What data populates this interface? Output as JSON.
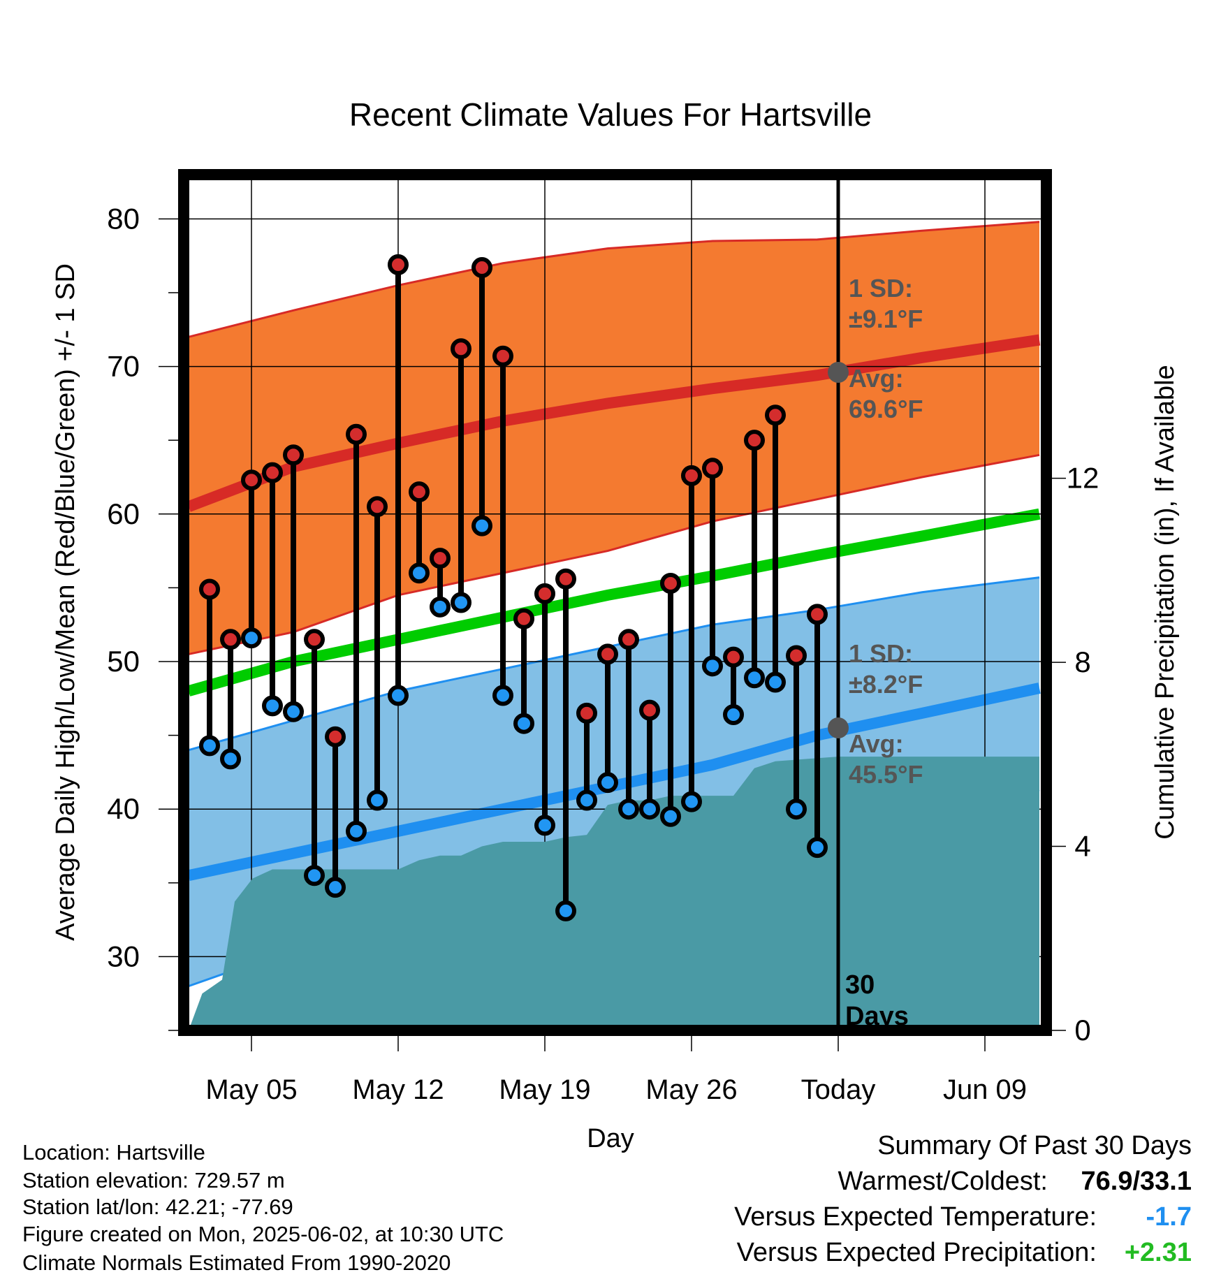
{
  "chart_data": {
    "type": "line",
    "title": "Recent Climate Values For Hartsville",
    "xlabel": "Day",
    "ylabel_left": "Average Daily High/Low/Mean (Red/Blue/Green) +/- 1 SD",
    "ylabel_right": "Cumulative Precipitation (in), If Available",
    "ylim_left": [
      25,
      83
    ],
    "ylim_right": [
      0,
      18.6
    ],
    "xlim_days": [
      0,
      43
    ],
    "x_tick_labels": [
      "May 05",
      "May 12",
      "May 19",
      "May 26",
      "Today",
      "Jun 09"
    ],
    "x_tick_days": [
      3,
      10,
      17,
      24,
      31,
      38
    ],
    "y_ticks_left": [
      30,
      40,
      50,
      60,
      70,
      80
    ],
    "y_ticks_right": [
      0,
      4,
      8,
      12
    ],
    "grid": true,
    "today_day": 31,
    "today_label": "30 Days",
    "normals": {
      "days": [
        0,
        5,
        10,
        15,
        20,
        25,
        30,
        35,
        40.6
      ],
      "high_avg": [
        60.5,
        63.2,
        64.8,
        66.3,
        67.5,
        68.5,
        69.4,
        70.6,
        71.8
      ],
      "high_upper": [
        72.0,
        73.8,
        75.5,
        77.0,
        78.0,
        78.5,
        78.6,
        79.2,
        79.8
      ],
      "high_lower": [
        50.5,
        52.0,
        54.5,
        56.0,
        57.5,
        59.5,
        61.0,
        62.5,
        64.0
      ],
      "mean": [
        48.0,
        50.0,
        51.5,
        53.0,
        54.5,
        55.8,
        57.2,
        58.5,
        60.0
      ],
      "low_avg": [
        35.5,
        37.0,
        38.5,
        40.0,
        41.5,
        43.0,
        45.0,
        46.5,
        48.2
      ],
      "low_upper": [
        44.0,
        46.0,
        48.0,
        49.5,
        51.0,
        52.5,
        53.5,
        54.7,
        55.7
      ],
      "low_lower": [
        28.0,
        30.5,
        31.5,
        33.5,
        34.5,
        35.5,
        36.5,
        39.0,
        41.3
      ]
    },
    "sd_high_label": "1 SD:",
    "sd_high_value": "±9.1°F",
    "avg_high_label": "Avg:",
    "avg_high_value": "69.6°F",
    "sd_low_label": "1 SD:",
    "sd_low_value": "±8.2°F",
    "avg_low_label": "Avg:",
    "avg_low_value": "45.5°F",
    "observed": {
      "days": [
        1,
        2,
        3,
        4,
        5,
        6,
        7,
        8,
        9,
        10,
        11,
        12,
        13,
        14,
        15,
        16,
        17,
        18,
        19,
        20,
        21,
        22,
        23,
        24,
        25,
        26,
        27,
        28,
        29,
        30
      ],
      "highs": [
        54.9,
        51.5,
        62.3,
        62.8,
        64.0,
        51.5,
        44.9,
        65.4,
        60.5,
        76.9,
        61.5,
        57.0,
        71.2,
        76.7,
        70.7,
        52.9,
        54.6,
        55.6,
        46.5,
        50.5,
        51.5,
        46.7,
        55.3,
        62.6,
        63.1,
        50.3,
        65.0,
        66.7,
        50.4,
        53.2
      ],
      "lows": [
        44.3,
        43.4,
        51.6,
        47.0,
        46.6,
        35.5,
        34.7,
        38.5,
        40.6,
        47.7,
        56.0,
        53.7,
        54.0,
        59.2,
        47.7,
        45.8,
        38.9,
        33.1,
        40.6,
        41.8,
        40.0,
        40.0,
        39.5,
        40.5,
        49.7,
        46.4,
        48.9,
        48.6,
        40.0,
        37.4
      ]
    },
    "precip_cumulative": {
      "days": [
        0,
        0.65,
        1.6,
        2.2,
        3.05,
        4.0,
        5.0,
        10.0,
        11.0,
        12.0,
        13.0,
        14.0,
        15.0,
        17.0,
        18.0,
        19.0,
        20.0,
        21.0,
        22.0,
        23.0,
        24.0,
        25.0,
        26.0,
        27.0,
        28.0,
        31.0,
        40.6
      ],
      "values": [
        0,
        0.8,
        1.1,
        2.8,
        3.3,
        3.5,
        3.5,
        3.5,
        3.7,
        3.8,
        3.8,
        4.0,
        4.1,
        4.1,
        4.2,
        4.25,
        4.9,
        5.0,
        5.0,
        5.1,
        5.1,
        5.1,
        5.1,
        5.7,
        5.85,
        5.95,
        5.95
      ]
    }
  },
  "footer": {
    "location": "Location: Hartsville",
    "elevation": "Station elevation: 729.57 m",
    "latlon": "Station lat/lon: 42.21; -77.69",
    "created": "Figure created on Mon, 2025-06-02, at 10:30 UTC",
    "normals": "Climate Normals Estimated From 1990-2020"
  },
  "summary": {
    "title": "Summary Of Past 30 Days",
    "warmest_label": "Warmest/Coldest:",
    "warmest_value": "76.9/33.1",
    "temp_label": "Versus Expected Temperature:",
    "temp_value": "-1.7",
    "precip_label": "Versus Expected Precipitation:",
    "precip_value": "+2.31"
  },
  "colors": {
    "high_band": "#f47a30",
    "high_line": "#d72a26",
    "low_band": "#82bfe6",
    "low_line": "#1f8ff0",
    "mean_line": "#00cc00",
    "precip": "#4a9aa5",
    "high_dot": "#d42d2d",
    "low_dot": "#2196f3",
    "annotation": "#555555",
    "temp_value": "#1f8ff0",
    "precip_value": "#22bb22"
  }
}
